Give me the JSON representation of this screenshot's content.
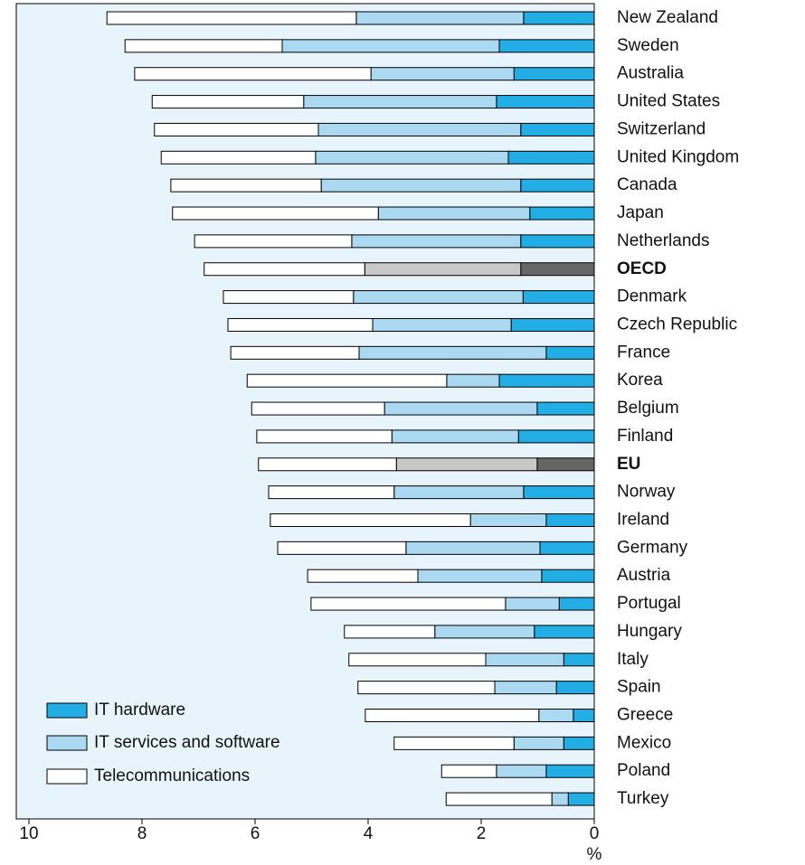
{
  "chart_data": {
    "type": "stacked-barh",
    "categories": [
      "New Zealand",
      "Sweden",
      "Australia",
      "United States",
      "Switzerland",
      "United Kingdom",
      "Canada",
      "Japan",
      "Netherlands",
      "OECD",
      "Denmark",
      "Czech Republic",
      "France",
      "Korea",
      "Belgium",
      "Finland",
      "EU",
      "Norway",
      "Ireland",
      "Germany",
      "Austria",
      "Portugal",
      "Hungary",
      "Italy",
      "Spain",
      "Greece",
      "Mexico",
      "Poland",
      "Turkey"
    ],
    "series": [
      {
        "name": "IT hardware",
        "color": "#22aee4",
        "highlight_color": "#666666",
        "values": [
          1.25,
          1.68,
          1.42,
          1.73,
          1.3,
          1.52,
          1.3,
          1.14,
          1.3,
          1.3,
          1.26,
          1.47,
          0.85,
          1.68,
          1.01,
          1.34,
          1.01,
          1.25,
          0.85,
          0.96,
          0.93,
          0.62,
          1.06,
          0.54,
          0.67,
          0.37,
          0.54,
          0.85,
          0.46
        ]
      },
      {
        "name": "IT services and software",
        "color": "#acd9f2",
        "highlight_color": "#c8c8c8",
        "values": [
          2.96,
          3.84,
          2.53,
          3.41,
          3.58,
          3.41,
          3.53,
          2.68,
          2.99,
          2.76,
          3.0,
          2.45,
          3.31,
          0.93,
          2.7,
          2.24,
          2.49,
          2.29,
          1.34,
          2.37,
          2.19,
          0.95,
          1.76,
          1.38,
          1.09,
          0.61,
          0.88,
          0.88,
          0.29
        ]
      },
      {
        "name": "Telecommunications",
        "color": "#ffffff",
        "highlight_color": "#ffffff",
        "values": [
          4.41,
          2.78,
          4.18,
          2.68,
          2.9,
          2.73,
          2.66,
          3.64,
          2.78,
          2.84,
          2.3,
          2.56,
          2.27,
          3.53,
          2.35,
          2.39,
          2.44,
          2.22,
          3.54,
          2.27,
          1.95,
          3.44,
          1.6,
          2.42,
          2.42,
          3.07,
          2.12,
          0.97,
          1.87
        ]
      }
    ],
    "highlight_indices": [
      9,
      16
    ],
    "xlim": [
      10,
      0
    ],
    "xticks": [
      10,
      8,
      6,
      4,
      2,
      0
    ],
    "xlabel": "%",
    "legend": "lower left"
  }
}
